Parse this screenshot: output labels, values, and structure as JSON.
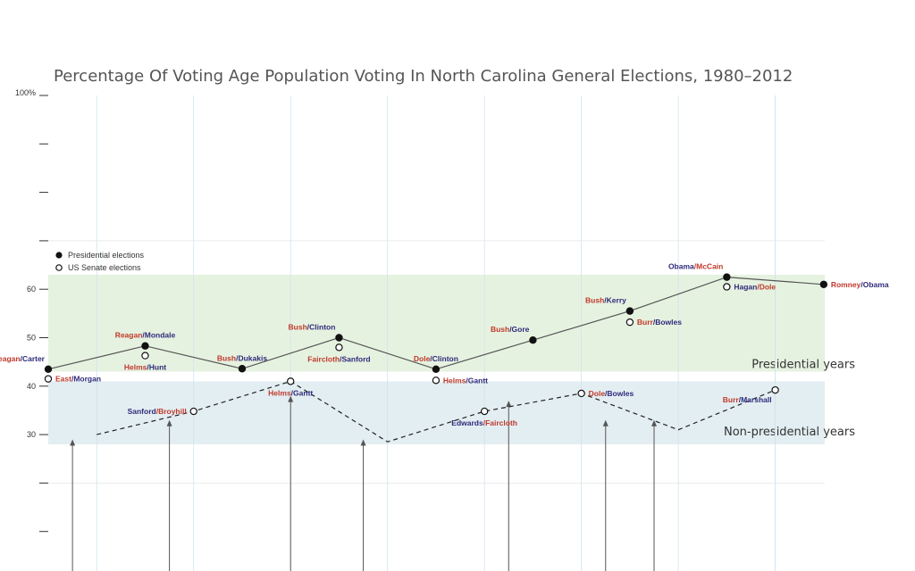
{
  "colors": {
    "republican": "#c0392b",
    "democrat": "#2e2a7a",
    "presidential_band": "#e6f2e0",
    "nonpresidential_band": "#e3eef2",
    "line": "#555555",
    "grid": "#cfe3ee"
  },
  "chart_data": {
    "type": "line",
    "title": "Percentage Of Voting Age Population Voting In North Carolina General Elections, 1980–2012",
    "xlabel": "",
    "ylabel": "",
    "x": [
      1980,
      1982,
      1984,
      1986,
      1988,
      1990,
      1992,
      1994,
      1996,
      1998,
      2000,
      2002,
      2004,
      2006,
      2008,
      2010,
      2012
    ],
    "ylim": [
      0,
      100
    ],
    "y_ticks": [
      {
        "value": 100,
        "label": "100%"
      },
      {
        "value": 90,
        "label": ""
      },
      {
        "value": 80,
        "label": ""
      },
      {
        "value": 70,
        "label": ""
      },
      {
        "value": 60,
        "label": "60"
      },
      {
        "value": 50,
        "label": "50"
      },
      {
        "value": 40,
        "label": "40"
      },
      {
        "value": 30,
        "label": "30"
      },
      {
        "value": 20,
        "label": ""
      },
      {
        "value": 10,
        "label": ""
      }
    ],
    "grid": true,
    "bands": [
      {
        "name": "Presidential years",
        "from": 43,
        "to": 63
      },
      {
        "name": "Non-presidential years",
        "from": 28,
        "to": 41
      }
    ],
    "legend": {
      "placement": "top-left",
      "entries": [
        {
          "marker": "filled",
          "label": "Presidential elections"
        },
        {
          "marker": "open",
          "label": "US Senate elections"
        }
      ]
    },
    "series": [
      {
        "name": "Presidential elections",
        "marker": "filled",
        "line": "solid",
        "points": [
          {
            "x": 1980,
            "y": 43.5,
            "winner": "Reagan",
            "loser": "Carter",
            "winner_party": "R",
            "label_pos": "top-left"
          },
          {
            "x": 1984,
            "y": 48.3,
            "winner": "Reagan",
            "loser": "Mondale",
            "winner_party": "R",
            "label_pos": "top"
          },
          {
            "x": 1988,
            "y": 43.6,
            "winner": "Bush",
            "loser": "Dukakis",
            "winner_party": "R",
            "label_pos": "top"
          },
          {
            "x": 1992,
            "y": 50.0,
            "winner": "Bush",
            "loser": "Clinton",
            "winner_party": "R",
            "label_pos": "top-left"
          },
          {
            "x": 1996,
            "y": 43.5,
            "winner": "Dole",
            "loser": "Clinton",
            "winner_party": "R",
            "label_pos": "top"
          },
          {
            "x": 2000,
            "y": 49.5,
            "winner": "Bush",
            "loser": "Gore",
            "winner_party": "R",
            "label_pos": "top-left"
          },
          {
            "x": 2004,
            "y": 55.5,
            "winner": "Bush",
            "loser": "Kerry",
            "winner_party": "R",
            "label_pos": "top-left"
          },
          {
            "x": 2008,
            "y": 62.5,
            "winner": "Obama",
            "loser": "McCain",
            "winner_party": "D",
            "label_pos": "top-left"
          },
          {
            "x": 2012,
            "y": 61.0,
            "winner": "Romney",
            "loser": "Obama",
            "winner_party": "R",
            "label_pos": "right"
          }
        ]
      },
      {
        "name": "US Senate elections",
        "marker": "open",
        "line": "none",
        "points": [
          {
            "x": 1980,
            "y": 41.5,
            "winner": "East",
            "loser": "Morgan",
            "winner_party": "R",
            "label_pos": "right"
          },
          {
            "x": 1984,
            "y": 46.3,
            "winner": "Helms",
            "loser": "Hunt",
            "winner_party": "R",
            "label_pos": "bottom"
          },
          {
            "x": 1992,
            "y": 48.0,
            "winner": "Faircloth",
            "loser": "Sanford",
            "winner_party": "R",
            "label_pos": "bottom"
          },
          {
            "x": 1996,
            "y": 41.2,
            "winner": "Helms",
            "loser": "Gantt",
            "winner_party": "R",
            "label_pos": "right"
          },
          {
            "x": 2004,
            "y": 53.2,
            "winner": "Burr",
            "loser": "Bowles",
            "winner_party": "R",
            "label_pos": "right"
          },
          {
            "x": 2008,
            "y": 60.5,
            "winner": "Hagan",
            "loser": "Dole",
            "winner_party": "D",
            "label_pos": "right"
          }
        ]
      },
      {
        "name": "Non-presidential years",
        "marker": "mixed",
        "line": "dashed",
        "points": [
          {
            "x": 1982,
            "y": 30.0,
            "marker": "none"
          },
          {
            "x": 1986,
            "y": 34.8,
            "marker": "open",
            "winner": "Sanford",
            "loser": "Broyhill",
            "winner_party": "D",
            "label_pos": "left"
          },
          {
            "x": 1990,
            "y": 41.0,
            "marker": "open",
            "winner": "Helms",
            "loser": "Gantt",
            "winner_party": "R",
            "label_pos": "bottom"
          },
          {
            "x": 1994,
            "y": 28.5,
            "marker": "none"
          },
          {
            "x": 1998,
            "y": 34.8,
            "marker": "open",
            "winner": "Edwards",
            "loser": "Faircloth",
            "winner_party": "D",
            "label_pos": "bottom"
          },
          {
            "x": 2002,
            "y": 38.5,
            "marker": "open",
            "winner": "Dole",
            "loser": "Bowles",
            "winner_party": "R",
            "label_pos": "right"
          },
          {
            "x": 2006,
            "y": 31.0,
            "marker": "none"
          },
          {
            "x": 2010,
            "y": 39.2,
            "marker": "open",
            "winner": "Burr",
            "loser": "Marshall",
            "winner_party": "R",
            "label_pos": "bottom-left"
          }
        ]
      }
    ],
    "annotation_arrows": [
      {
        "x": 1981,
        "to_y": 29
      },
      {
        "x": 1985,
        "to_y": 33
      },
      {
        "x": 1990,
        "to_y": 38
      },
      {
        "x": 1993,
        "to_y": 29
      },
      {
        "x": 1999,
        "to_y": 37
      },
      {
        "x": 2003,
        "to_y": 33
      },
      {
        "x": 2005,
        "to_y": 33
      }
    ]
  }
}
